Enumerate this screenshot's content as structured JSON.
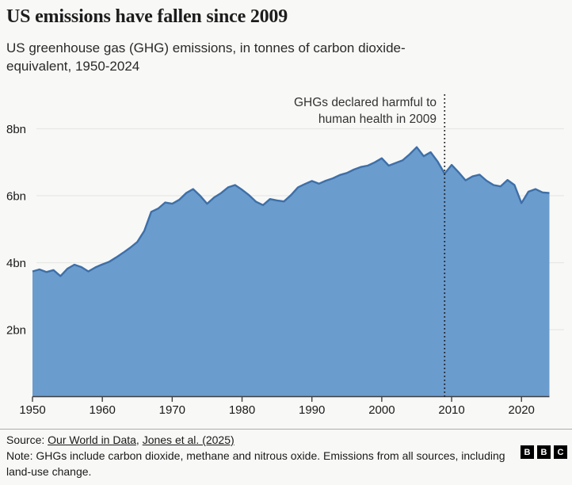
{
  "chart_data": {
    "type": "area",
    "title": "US emissions have fallen since 2009",
    "subtitle": "US greenhouse gas (GHG) emissions, in tonnes of carbon dioxide-equivalent, 1950-2024",
    "series_name": "US GHG emissions, tonnes of CO2-equivalent (billions)",
    "x": [
      1950,
      1951,
      1952,
      1953,
      1954,
      1955,
      1956,
      1957,
      1958,
      1959,
      1960,
      1961,
      1962,
      1963,
      1964,
      1965,
      1966,
      1967,
      1968,
      1969,
      1970,
      1971,
      1972,
      1973,
      1974,
      1975,
      1976,
      1977,
      1978,
      1979,
      1980,
      1981,
      1982,
      1983,
      1984,
      1985,
      1986,
      1987,
      1988,
      1989,
      1990,
      1991,
      1992,
      1993,
      1994,
      1995,
      1996,
      1997,
      1998,
      1999,
      2000,
      2001,
      2002,
      2003,
      2004,
      2005,
      2006,
      2007,
      2008,
      2009,
      2010,
      2011,
      2012,
      2013,
      2014,
      2015,
      2016,
      2017,
      2018,
      2019,
      2020,
      2021,
      2022,
      2023,
      2024
    ],
    "values": [
      3.74,
      3.8,
      3.72,
      3.78,
      3.6,
      3.82,
      3.94,
      3.87,
      3.74,
      3.86,
      3.95,
      4.03,
      4.16,
      4.3,
      4.45,
      4.62,
      4.95,
      5.52,
      5.62,
      5.8,
      5.76,
      5.88,
      6.08,
      6.2,
      6.0,
      5.76,
      5.95,
      6.08,
      6.25,
      6.32,
      6.18,
      6.02,
      5.82,
      5.72,
      5.9,
      5.86,
      5.83,
      6.02,
      6.25,
      6.35,
      6.44,
      6.36,
      6.45,
      6.52,
      6.62,
      6.68,
      6.78,
      6.86,
      6.9,
      7.0,
      7.12,
      6.9,
      6.98,
      7.06,
      7.24,
      7.45,
      7.18,
      7.3,
      7.02,
      6.66,
      6.92,
      6.7,
      6.46,
      6.58,
      6.63,
      6.45,
      6.32,
      6.28,
      6.47,
      6.32,
      5.78,
      6.12,
      6.2,
      6.1,
      6.08
    ],
    "unit": "bn",
    "xlim": [
      1950,
      2024
    ],
    "ylim": [
      0,
      9.2
    ],
    "grid": "horizontal",
    "legend": "none",
    "yticks": [
      {
        "label": "2bn",
        "value": 2
      },
      {
        "label": "4bn",
        "value": 4
      },
      {
        "label": "6bn",
        "value": 6
      },
      {
        "label": "8bn",
        "value": 8
      }
    ],
    "xticks": [
      {
        "label": "1950",
        "value": 1950
      },
      {
        "label": "1960",
        "value": 1960
      },
      {
        "label": "1970",
        "value": 1970
      },
      {
        "label": "1980",
        "value": 1980
      },
      {
        "label": "1990",
        "value": 1990
      },
      {
        "label": "2000",
        "value": 2000
      },
      {
        "label": "2010",
        "value": 2010
      },
      {
        "label": "2020",
        "value": 2020
      }
    ],
    "annotation": {
      "lines": [
        "GHGs declared harmful to",
        "human health in 2009"
      ],
      "x_year": 2009,
      "marker": "vertical-dotted-line"
    },
    "colors": {
      "area_fill": "#6b9cce",
      "area_stroke": "#3e6fa7",
      "gridline": "#e7e7e5",
      "axis": "#3f3f3f",
      "annotation_line": "#1a1a1a",
      "text": "#1a1a1a"
    }
  },
  "footer": {
    "source_prefix": "Source: ",
    "source_links": [
      "Our World in Data",
      "Jones et al. (2025)"
    ],
    "source_separator": ", ",
    "note": "Note: GHGs include carbon dioxide, methane and nitrous oxide. Emissions from all sources, including land-use change.",
    "logo": {
      "name": "BBC",
      "letters": [
        "B",
        "B",
        "C"
      ]
    }
  }
}
